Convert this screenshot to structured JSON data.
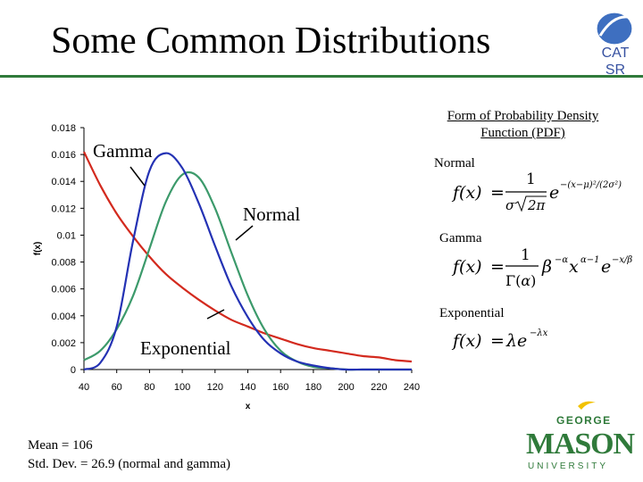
{
  "slide": {
    "title": "Some Common Distributions",
    "logo_text": "CAT\nSR",
    "stats": [
      "Mean = 106",
      "Std. Dev. = 26.9 (normal and gamma)"
    ],
    "pdf_heading": "Form of Probability Density Function (PDF)",
    "pdf_items": [
      {
        "label": "Normal"
      },
      {
        "label": "Gamma"
      },
      {
        "label": "Exponential"
      }
    ],
    "gmu_logo": {
      "top": "GEORGE",
      "main": "MASON",
      "bottom": "UNIVERSITY"
    },
    "colors": {
      "accent": "#2f7a3a",
      "gamma": "#2432b4",
      "normal": "#3c9a6b",
      "exponential": "#d32a1e",
      "cat_blue": "#3550a0"
    }
  },
  "chart_data": {
    "type": "line",
    "xlabel": "x",
    "ylabel": "f(x)",
    "xlim": [
      40,
      240
    ],
    "ylim": [
      0,
      0.018
    ],
    "x_ticks": [
      40,
      60,
      80,
      100,
      120,
      140,
      160,
      180,
      200,
      220,
      240
    ],
    "y_ticks": [
      0,
      0.002,
      0.004,
      0.006,
      0.008,
      0.01,
      0.012,
      0.014,
      0.016,
      0.018
    ],
    "y_tick_labels": [
      "0",
      "0.002",
      "0.004",
      "0.006",
      "0.008",
      "0.01",
      "0.012",
      "0.014",
      "0.016",
      "0.018"
    ],
    "grid": false,
    "x": [
      40,
      50,
      60,
      70,
      80,
      90,
      100,
      110,
      120,
      130,
      140,
      150,
      160,
      170,
      180,
      190,
      200,
      210,
      220,
      230,
      240
    ],
    "series": [
      {
        "name": "Gamma",
        "color": "#2432b4",
        "values": [
          0.0,
          0.0005,
          0.0032,
          0.0096,
          0.0148,
          0.0161,
          0.015,
          0.0124,
          0.0092,
          0.0062,
          0.0039,
          0.0022,
          0.0012,
          0.0006,
          0.0003,
          0.0001,
          0.0,
          0.0,
          0.0,
          0.0,
          0.0
        ]
      },
      {
        "name": "Normal",
        "color": "#3c9a6b",
        "values": [
          0.0007,
          0.0014,
          0.003,
          0.0055,
          0.009,
          0.0125,
          0.0145,
          0.0143,
          0.012,
          0.0087,
          0.0055,
          0.003,
          0.0014,
          0.0006,
          0.0002,
          0.0001,
          0.0,
          0.0,
          0.0,
          0.0,
          0.0
        ]
      },
      {
        "name": "Exponential",
        "color": "#d32a1e",
        "values": [
          0.0162,
          0.0137,
          0.0116,
          0.0099,
          0.0084,
          0.0071,
          0.0061,
          0.0052,
          0.0044,
          0.0037,
          0.0032,
          0.0027,
          0.0023,
          0.0019,
          0.0016,
          0.0014,
          0.0012,
          0.001,
          0.0009,
          0.0007,
          0.0006
        ]
      }
    ],
    "annotations": [
      {
        "text": "Gamma",
        "series": "Gamma"
      },
      {
        "text": "Normal",
        "series": "Normal"
      },
      {
        "text": "Exponential",
        "series": "Exponential"
      }
    ]
  }
}
